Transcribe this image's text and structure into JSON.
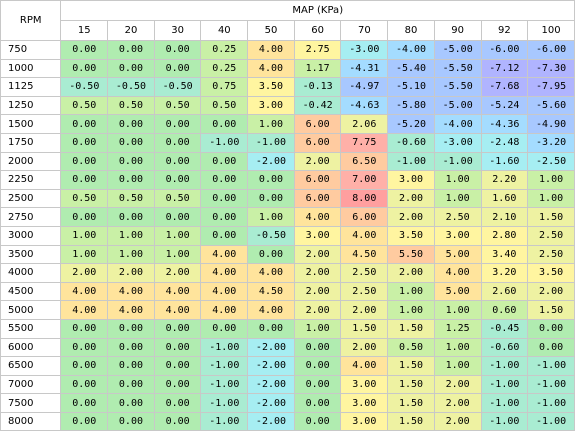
{
  "header": {
    "rpm_label": "RPM",
    "map_label": "MAP (KPa)",
    "map_columns": [
      "15",
      "20",
      "30",
      "40",
      "50",
      "60",
      "70",
      "80",
      "90",
      "92",
      "100"
    ]
  },
  "rows": [
    {
      "rpm": "750",
      "values": [
        "0.00",
        "0.00",
        "0.00",
        "0.25",
        "4.00",
        "2.75",
        "-3.00",
        "-4.00",
        "-5.00",
        "-6.00",
        "-6.00"
      ]
    },
    {
      "rpm": "1000",
      "values": [
        "0.00",
        "0.00",
        "0.00",
        "0.25",
        "4.00",
        "1.17",
        "-4.31",
        "-5.40",
        "-5.50",
        "-7.12",
        "-7.30"
      ]
    },
    {
      "rpm": "1125",
      "values": [
        "-0.50",
        "-0.50",
        "-0.50",
        "0.75",
        "3.50",
        "-0.13",
        "-4.97",
        "-5.10",
        "-5.50",
        "-7.68",
        "-7.95"
      ]
    },
    {
      "rpm": "1250",
      "values": [
        "0.50",
        "0.50",
        "0.50",
        "0.50",
        "3.00",
        "-0.42",
        "-4.63",
        "-5.80",
        "-5.00",
        "-5.24",
        "-5.60"
      ]
    },
    {
      "rpm": "1500",
      "values": [
        "0.00",
        "0.00",
        "0.00",
        "0.00",
        "1.00",
        "6.00",
        "2.06",
        "-5.20",
        "-4.00",
        "-4.36",
        "-4.90"
      ]
    },
    {
      "rpm": "1750",
      "values": [
        "0.00",
        "0.00",
        "0.00",
        "-1.00",
        "-1.00",
        "6.00",
        "7.75",
        "-0.60",
        "-3.00",
        "-2.48",
        "-3.20"
      ]
    },
    {
      "rpm": "2000",
      "values": [
        "0.00",
        "0.00",
        "0.00",
        "0.00",
        "-2.00",
        "2.00",
        "6.50",
        "-1.00",
        "-1.00",
        "-1.60",
        "-2.50"
      ]
    },
    {
      "rpm": "2250",
      "values": [
        "0.00",
        "0.00",
        "0.00",
        "0.00",
        "0.00",
        "6.00",
        "7.00",
        "3.00",
        "1.00",
        "2.20",
        "1.00"
      ]
    },
    {
      "rpm": "2500",
      "values": [
        "0.50",
        "0.50",
        "0.50",
        "0.00",
        "0.00",
        "6.00",
        "8.00",
        "2.00",
        "1.00",
        "1.60",
        "1.00"
      ]
    },
    {
      "rpm": "2750",
      "values": [
        "0.00",
        "0.00",
        "0.00",
        "0.00",
        "1.00",
        "4.00",
        "6.00",
        "2.00",
        "2.50",
        "2.10",
        "1.50"
      ]
    },
    {
      "rpm": "3000",
      "values": [
        "1.00",
        "1.00",
        "1.00",
        "0.00",
        "-0.50",
        "3.00",
        "4.00",
        "3.50",
        "3.00",
        "2.80",
        "2.50"
      ]
    },
    {
      "rpm": "3500",
      "values": [
        "1.00",
        "1.00",
        "1.00",
        "4.00",
        "0.00",
        "2.00",
        "4.50",
        "5.50",
        "5.00",
        "3.40",
        "2.50"
      ]
    },
    {
      "rpm": "4000",
      "values": [
        "2.00",
        "2.00",
        "2.00",
        "4.00",
        "4.00",
        "2.00",
        "2.50",
        "2.00",
        "4.00",
        "3.20",
        "3.50"
      ]
    },
    {
      "rpm": "4500",
      "values": [
        "4.00",
        "4.00",
        "4.00",
        "4.00",
        "4.50",
        "2.00",
        "2.50",
        "1.00",
        "5.00",
        "2.60",
        "2.00"
      ]
    },
    {
      "rpm": "5000",
      "values": [
        "4.00",
        "4.00",
        "4.00",
        "4.00",
        "4.00",
        "2.00",
        "2.00",
        "1.00",
        "1.00",
        "0.60",
        "1.50"
      ]
    },
    {
      "rpm": "5500",
      "values": [
        "0.00",
        "0.00",
        "0.00",
        "0.00",
        "0.00",
        "1.00",
        "1.50",
        "1.50",
        "1.25",
        "-0.45",
        "0.00"
      ]
    },
    {
      "rpm": "6000",
      "values": [
        "0.00",
        "0.00",
        "0.00",
        "-1.00",
        "-2.00",
        "0.00",
        "2.00",
        "0.50",
        "1.00",
        "-0.60",
        "0.00"
      ]
    },
    {
      "rpm": "6500",
      "values": [
        "0.00",
        "0.00",
        "0.00",
        "-1.00",
        "-2.00",
        "0.00",
        "4.00",
        "1.50",
        "1.00",
        "-1.00",
        "-1.00"
      ]
    },
    {
      "rpm": "7000",
      "values": [
        "0.00",
        "0.00",
        "0.00",
        "-1.00",
        "-2.00",
        "0.00",
        "3.00",
        "1.50",
        "2.00",
        "-1.00",
        "-1.00"
      ]
    },
    {
      "rpm": "7500",
      "values": [
        "0.00",
        "0.00",
        "0.00",
        "-1.00",
        "-2.00",
        "0.00",
        "3.00",
        "1.50",
        "2.00",
        "-1.00",
        "-1.00"
      ]
    },
    {
      "rpm": "8000",
      "values": [
        "0.00",
        "0.00",
        "0.00",
        "-1.00",
        "-2.00",
        "0.00",
        "3.00",
        "1.50",
        "2.00",
        "-1.00",
        "-1.00"
      ]
    }
  ],
  "colors": {
    "zero": "#b0ecb0",
    "grid": "#c8c8c8",
    "positive_scale": [
      "#c9f0a6",
      "#eef2a2",
      "#fff5a0",
      "#ffe49c",
      "#ffcba0",
      "#ffb0a8",
      "#ff9f9f"
    ],
    "negative_scale": [
      "#a9ecd2",
      "#a6eef2",
      "#a4dcff",
      "#a8c8ff",
      "#b0b4ff",
      "#baa6ff"
    ]
  }
}
